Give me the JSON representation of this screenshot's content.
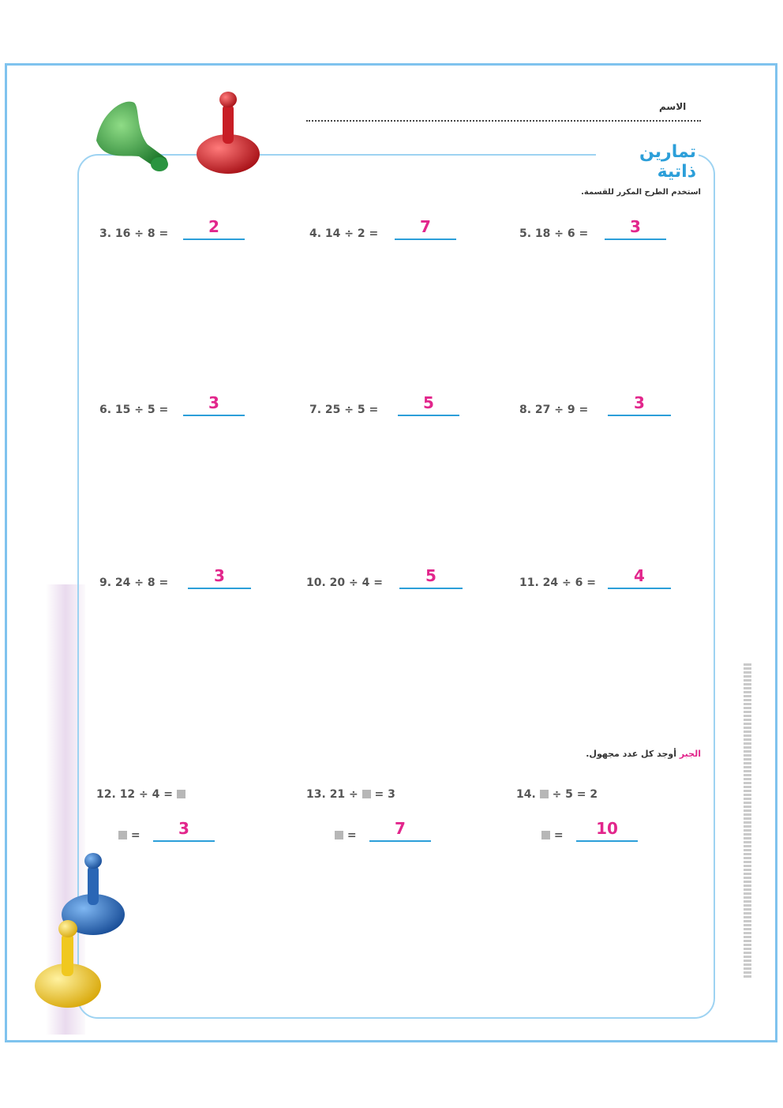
{
  "header": {
    "name_label": "الاسم",
    "title": "تمارين ذاتية"
  },
  "instruction": "استخدم الطرح المكرر للقسمة.",
  "problems": [
    {
      "expr": "3.  16 ÷ 8 =",
      "answer": "2"
    },
    {
      "expr": "4.  14 ÷ 2 =",
      "answer": "7"
    },
    {
      "expr": "5.  18 ÷ 6 =",
      "answer": "3"
    },
    {
      "expr": "6.  15 ÷ 5 =",
      "answer": "3"
    },
    {
      "expr": "7.  25 ÷ 5 =",
      "answer": "5"
    },
    {
      "expr": "8.  27 ÷ 9 =",
      "answer": "3"
    },
    {
      "expr": "9.  24 ÷ 8 =",
      "answer": "3"
    },
    {
      "expr": "10.  20 ÷ 4 =",
      "answer": "5"
    },
    {
      "expr": "11.  24 ÷ 6 =",
      "answer": "4"
    }
  ],
  "algebra": {
    "tag": "الجبر",
    "instruction": "أوجد كل عدد مجهول.",
    "items": [
      {
        "num": "12.",
        "before": "12 ÷ 4 =",
        "after": "",
        "answer": "3"
      },
      {
        "num": "13.",
        "before": "21 ÷",
        "after": "= 3",
        "answer": "7"
      },
      {
        "num": "14.",
        "before": "",
        "after": "÷ 5 = 2",
        "answer": "10"
      }
    ],
    "equals": "="
  },
  "colors": {
    "accent_blue": "#2c9fd9",
    "answer_pink": "#e2268c",
    "piece_green": "#3aa446",
    "piece_red": "#d8232d",
    "piece_blue": "#2f78c8",
    "piece_yellow": "#f2cf1f"
  }
}
